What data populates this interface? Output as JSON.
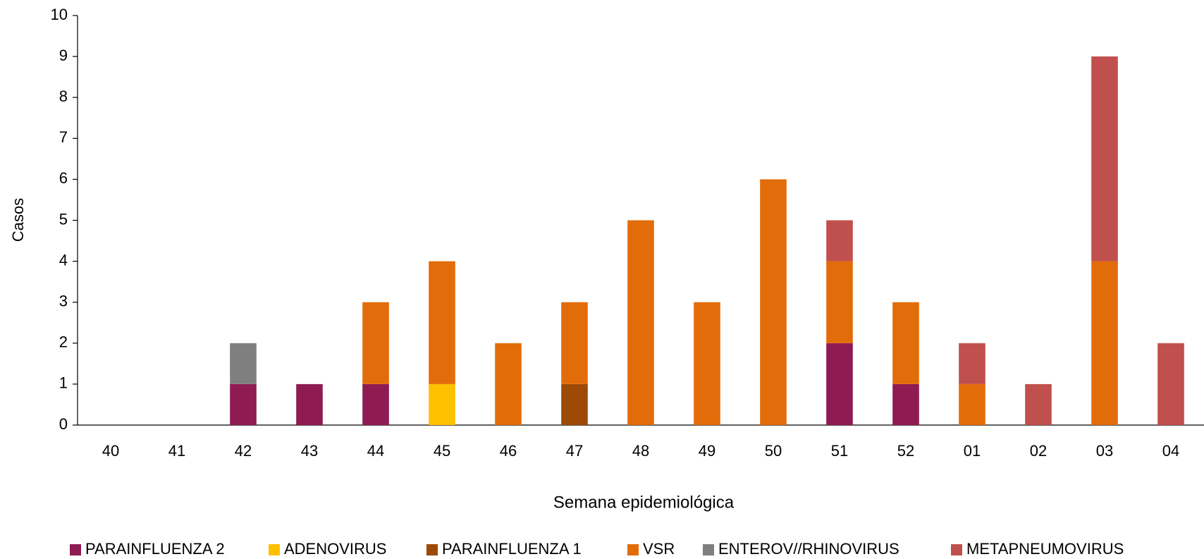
{
  "chart_data": {
    "type": "bar",
    "stacked": true,
    "y_label": "Casos",
    "x_label": "Semana epidemiológica",
    "categories": [
      "40",
      "41",
      "42",
      "43",
      "44",
      "45",
      "46",
      "47",
      "48",
      "49",
      "50",
      "51",
      "52",
      "01",
      "02",
      "03",
      "04"
    ],
    "series": [
      {
        "name": "PARAINFLUENZA 2",
        "color": "#8e1b52",
        "values": [
          0,
          0,
          1,
          1,
          1,
          0,
          0,
          0,
          0,
          0,
          0,
          2,
          1,
          0,
          0,
          0,
          0
        ]
      },
      {
        "name": "ADENOVIRUS",
        "color": "#ffc000",
        "values": [
          0,
          0,
          0,
          0,
          0,
          1,
          0,
          0,
          0,
          0,
          0,
          0,
          0,
          0,
          0,
          0,
          0
        ]
      },
      {
        "name": "PARAINFLUENZA 1",
        "color": "#9c4a06",
        "values": [
          0,
          0,
          0,
          0,
          0,
          0,
          0,
          1,
          0,
          0,
          0,
          0,
          0,
          0,
          0,
          0,
          0
        ]
      },
      {
        "name": "VSR",
        "color": "#e36c0a",
        "values": [
          0,
          0,
          0,
          0,
          2,
          3,
          2,
          2,
          5,
          3,
          6,
          2,
          2,
          1,
          0,
          4,
          0
        ]
      },
      {
        "name": "ENTEROV//RHINOVIRUS",
        "color": "#7f7f7f",
        "values": [
          0,
          0,
          1,
          0,
          0,
          0,
          0,
          0,
          0,
          0,
          0,
          0,
          0,
          0,
          0,
          0,
          0
        ]
      },
      {
        "name": "METAPNEUMOVIRUS",
        "color": "#c0504d",
        "values": [
          0,
          0,
          0,
          0,
          0,
          0,
          0,
          0,
          0,
          0,
          0,
          1,
          0,
          1,
          1,
          5,
          2
        ]
      }
    ],
    "ylim": [
      0,
      10
    ],
    "yticks": [
      0,
      1,
      2,
      3,
      4,
      5,
      6,
      7,
      8,
      9,
      10
    ],
    "legend": "bottom"
  }
}
